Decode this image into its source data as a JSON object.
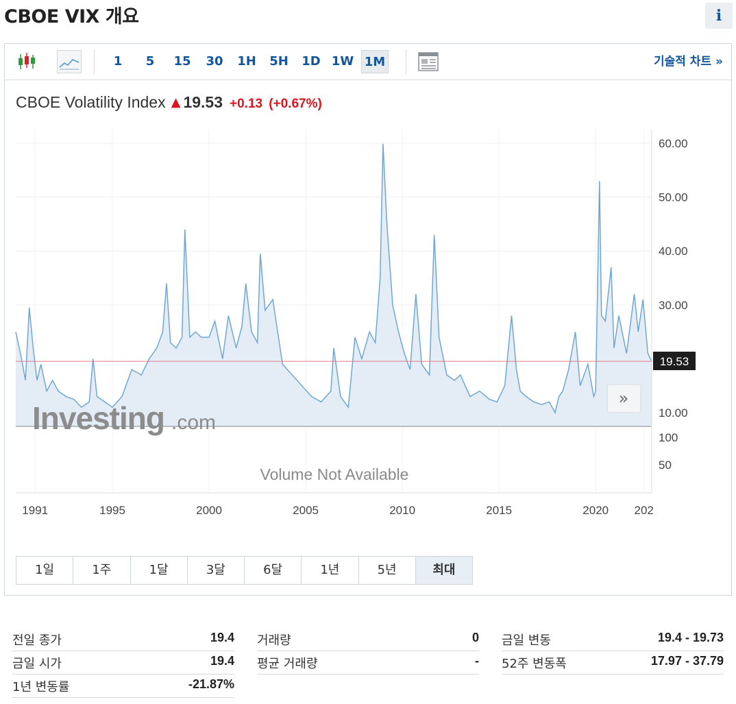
{
  "page": {
    "title": "CBOE VIX 개요",
    "info_label": "i"
  },
  "toolbar": {
    "timeframes": [
      "1",
      "5",
      "15",
      "30",
      "1H",
      "5H",
      "1D",
      "1W",
      "1M"
    ],
    "active_timeframe": "1M",
    "tech_chart_label": "기술적 차트 »"
  },
  "quote": {
    "name": "CBOE Volatility Index",
    "price": "19.53",
    "change": "+0.13",
    "change_pct": "(+0.67%)",
    "direction": "up",
    "up_color": "#e0141e"
  },
  "watermark": {
    "brand": "Investing",
    "suffix": ".com"
  },
  "volume_message": "Volume Not Available",
  "last_price_label": "19.53",
  "chart_data": {
    "type": "area",
    "y_ticks": [
      "60.00",
      "50.00",
      "40.00",
      "30.00",
      "10.00"
    ],
    "volume_ticks": [
      "100",
      "50"
    ],
    "x_ticks": [
      "1991",
      "1995",
      "2000",
      "2005",
      "2010",
      "2015",
      "2020",
      "202"
    ],
    "ylim": [
      8,
      60
    ],
    "xlim": [
      1990.0,
      2022.9
    ],
    "last_value": 19.53,
    "line_color": "#6ea7d2",
    "fill_color": "#e4edf6",
    "series": [
      {
        "x": [
          1990.0,
          1990.3,
          1990.5,
          1990.7,
          1990.9,
          1991.1,
          1991.3,
          1991.6,
          1991.9,
          1992.2,
          1992.6,
          1993.0,
          1993.4,
          1993.8,
          1994.0,
          1994.2,
          1994.6,
          1995.0,
          1995.5,
          1996.0,
          1996.5,
          1996.9,
          1997.3,
          1997.6,
          1997.8,
          1998.0,
          1998.3,
          1998.6,
          1998.75,
          1999.0,
          1999.3,
          1999.6,
          2000.0,
          2000.3,
          2000.7,
          2001.0,
          2001.4,
          2001.7,
          2001.9,
          2002.2,
          2002.5,
          2002.65,
          2002.9,
          2003.3,
          2003.8,
          2004.3,
          2004.8,
          2005.3,
          2005.8,
          2006.3,
          2006.45,
          2006.8,
          2007.2,
          2007.55,
          2007.9,
          2008.3,
          2008.6,
          2008.85,
          2009.0,
          2009.2,
          2009.5,
          2009.8,
          2010.1,
          2010.4,
          2010.7,
          2011.0,
          2011.4,
          2011.65,
          2011.9,
          2012.3,
          2012.7,
          2013.0,
          2013.5,
          2014.0,
          2014.5,
          2014.9,
          2015.3,
          2015.65,
          2015.9,
          2016.1,
          2016.4,
          2016.8,
          2017.2,
          2017.6,
          2017.9,
          2018.1,
          2018.3,
          2018.6,
          2018.95,
          2019.2,
          2019.6,
          2019.9,
          2020.0,
          2020.2,
          2020.3,
          2020.5,
          2020.8,
          2020.95,
          2021.2,
          2021.6,
          2022.0,
          2022.2,
          2022.45,
          2022.7,
          2022.9
        ],
        "values": [
          25,
          20,
          16,
          29.5,
          22,
          16,
          19,
          14,
          16,
          14,
          13,
          12.5,
          11,
          12,
          20,
          13,
          12,
          11,
          13,
          18,
          17,
          20,
          22,
          25,
          34,
          23,
          22,
          24,
          44,
          24,
          25,
          24,
          24,
          27,
          20,
          28,
          22,
          26,
          34,
          25,
          23,
          39.5,
          29,
          31,
          19,
          17,
          15,
          13,
          12,
          14,
          22,
          13,
          11,
          24,
          20,
          25,
          23,
          35,
          59.9,
          45,
          30,
          25,
          21,
          18,
          32,
          19,
          17,
          43,
          24,
          17,
          16,
          17,
          13,
          14,
          12.5,
          12,
          15,
          28,
          18,
          14,
          13,
          12,
          11.5,
          12,
          10,
          13,
          14,
          18,
          25,
          15,
          19,
          13,
          14,
          53,
          28,
          27,
          37,
          22,
          28,
          21,
          32,
          25,
          31,
          21,
          19.53
        ]
      }
    ]
  },
  "range_buttons": {
    "items": [
      "1일",
      "1주",
      "1달",
      "3달",
      "6달",
      "1년",
      "5년",
      "최대"
    ],
    "active": "최대"
  },
  "stats": {
    "col1": [
      {
        "label": "전일 종가",
        "value": "19.4"
      },
      {
        "label": "금일 시가",
        "value": "19.4"
      },
      {
        "label": "1년 변동률",
        "value": "-21.87%"
      }
    ],
    "col2": [
      {
        "label": "거래량",
        "value": "0"
      },
      {
        "label": "평균 거래량",
        "value": "-"
      }
    ],
    "col3": [
      {
        "label": "금일 변동",
        "value": "19.4 - 19.73"
      },
      {
        "label": "52주 변동폭",
        "value": "17.97 - 37.79"
      }
    ]
  }
}
